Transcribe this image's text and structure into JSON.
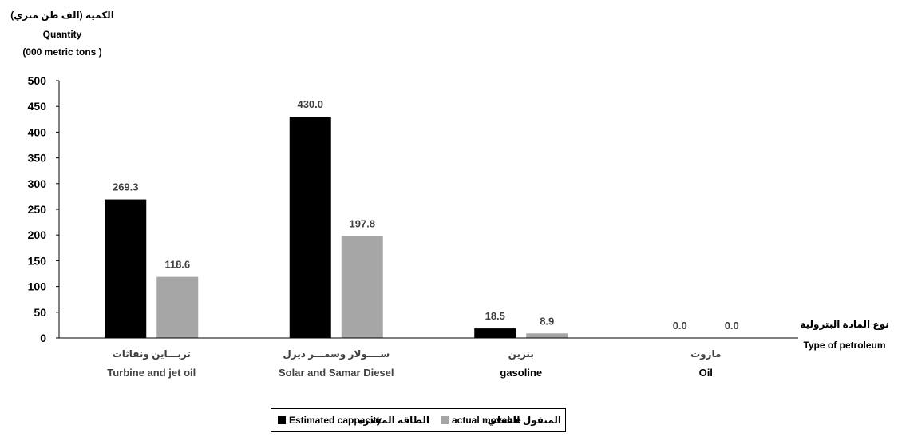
{
  "chart_data": {
    "type": "bar",
    "ylabel_ar": "الكمية  (الف طن متري)",
    "ylabel_en": "Quantity",
    "ylabel_unit": "(000 metric tons )",
    "xlabel_ar": "نوع المادة البترولية",
    "xlabel_en": "Type of petroleum",
    "ylim": [
      0,
      500
    ],
    "yticks": [
      0,
      50,
      100,
      150,
      200,
      250,
      300,
      350,
      400,
      450,
      500
    ],
    "grid": false,
    "legend_position": "bottom",
    "categories": [
      {
        "ar": "تربـــاين ونفاثات",
        "en": "Turbine and jet oil"
      },
      {
        "ar": "ســــولار وسمـــر ديزل",
        "en": "Solar and Samar Diesel"
      },
      {
        "ar": "بنزين",
        "en": "gasoline"
      },
      {
        "ar": "مازوت",
        "en": "Oil"
      }
    ],
    "series": [
      {
        "name": "Estimated cappacity",
        "name_ar": "الطاقة المقدرة",
        "color": "#000000",
        "values": [
          269.3,
          430.0,
          18.5,
          0.0
        ]
      },
      {
        "name": "actual movable",
        "name_ar": "المنقول الفعلي",
        "color": "#a6a6a6",
        "values": [
          118.6,
          197.8,
          8.9,
          0.0
        ]
      }
    ]
  }
}
